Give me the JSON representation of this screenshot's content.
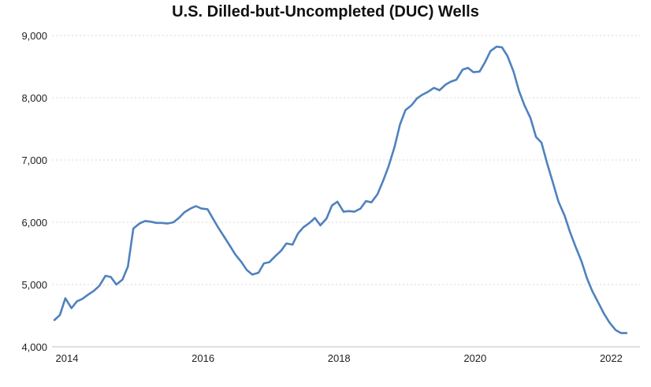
{
  "chart_data": {
    "type": "line",
    "title": "U.S. Dilled-but-Uncompleted (DUC) Wells",
    "xlabel": "",
    "ylabel": "",
    "ylim": [
      4000,
      9000
    ],
    "xlim": [
      2013.92,
      2022.33
    ],
    "yticks": [
      4000,
      5000,
      6000,
      7000,
      8000,
      9000
    ],
    "ytick_labels": [
      "4,000",
      "5,000",
      "6,000",
      "7,000",
      "8,000",
      "9,000"
    ],
    "xticks": [
      2014,
      2016,
      2018,
      2020,
      2022
    ],
    "xtick_labels": [
      "2014",
      "2016",
      "2018",
      "2020",
      "2022"
    ],
    "grid": "horizontal dotted",
    "line_color": "#4f81bd",
    "series": [
      {
        "x": [
          2013.92,
          2014.0,
          2014.08,
          2014.17,
          2014.25,
          2014.33,
          2014.42,
          2014.5,
          2014.58,
          2014.67,
          2014.75,
          2014.83,
          2014.92,
          2015.0,
          2015.08,
          2015.17,
          2015.25,
          2015.33,
          2015.42,
          2015.5,
          2015.58,
          2015.67,
          2015.75,
          2015.83,
          2015.92,
          2016.0,
          2016.08,
          2016.17,
          2016.25,
          2016.33,
          2016.42,
          2016.5,
          2016.58,
          2016.67,
          2016.75,
          2016.83,
          2016.92,
          2017.0,
          2017.08,
          2017.17,
          2017.25,
          2017.33,
          2017.42,
          2017.5,
          2017.58,
          2017.67,
          2017.75,
          2017.83,
          2017.92,
          2018.0,
          2018.08,
          2018.17,
          2018.25,
          2018.33,
          2018.42,
          2018.5,
          2018.58,
          2018.67,
          2018.75,
          2018.83,
          2018.92,
          2019.0,
          2019.08,
          2019.17,
          2019.25,
          2019.33,
          2019.42,
          2019.5,
          2019.58,
          2019.67,
          2019.75,
          2019.83,
          2019.92,
          2020.0,
          2020.08,
          2020.17,
          2020.25,
          2020.33,
          2020.42,
          2020.5,
          2020.58,
          2020.67,
          2020.75,
          2020.83,
          2020.92,
          2021.0,
          2021.08,
          2021.17,
          2021.25,
          2021.33,
          2021.42,
          2021.5,
          2021.58,
          2021.67,
          2021.75,
          2021.83,
          2021.92,
          2022.0,
          2022.08,
          2022.17,
          2022.25,
          2022.33
        ],
        "values": [
          4430,
          4510,
          4780,
          4620,
          4730,
          4770,
          4840,
          4900,
          4980,
          5140,
          5120,
          5000,
          5080,
          5290,
          5900,
          5980,
          6020,
          6010,
          5990,
          5990,
          5980,
          6000,
          6070,
          6160,
          6220,
          6260,
          6220,
          6210,
          6060,
          5910,
          5760,
          5620,
          5480,
          5360,
          5230,
          5160,
          5190,
          5340,
          5360,
          5460,
          5540,
          5660,
          5640,
          5820,
          5920,
          5990,
          6070,
          5950,
          6060,
          6270,
          6330,
          6170,
          6180,
          6170,
          6220,
          6340,
          6320,
          6450,
          6660,
          6890,
          7210,
          7570,
          7800,
          7880,
          7990,
          8050,
          8100,
          8160,
          8120,
          8210,
          8260,
          8290,
          8450,
          8480,
          8410,
          8420,
          8570,
          8750,
          8820,
          8810,
          8670,
          8420,
          8110,
          7880,
          7670,
          7370,
          7280,
          6920,
          6630,
          6330,
          6110,
          5840,
          5610,
          5370,
          5100,
          4890,
          4700,
          4530,
          4390,
          4270,
          4220,
          4220
        ]
      }
    ]
  }
}
